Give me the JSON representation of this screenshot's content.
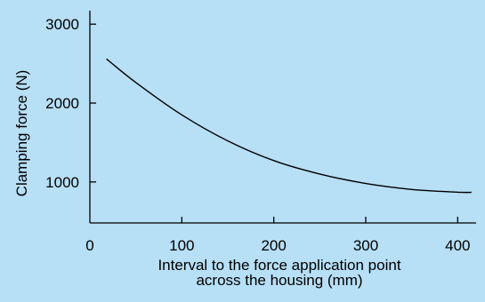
{
  "chart_data": {
    "type": "line",
    "title": "",
    "xlabel_lines": [
      "Interval to the force application point",
      "across the housing (mm)"
    ],
    "ylabel": "Clamping force (N)",
    "xlim": [
      0,
      420
    ],
    "ylim": [
      480,
      3250
    ],
    "x_ticks": [
      0,
      100,
      200,
      300,
      400
    ],
    "y_ticks": [
      1000,
      2000,
      3000
    ],
    "grid": false,
    "line_color": "#000000",
    "background": "#b7dff5",
    "series": [
      {
        "x": [
          18,
          50,
          100,
          150,
          200,
          250,
          300,
          350,
          400,
          415
        ],
        "y": [
          2560,
          2260,
          1850,
          1520,
          1270,
          1100,
          980,
          905,
          870,
          868
        ]
      }
    ]
  }
}
